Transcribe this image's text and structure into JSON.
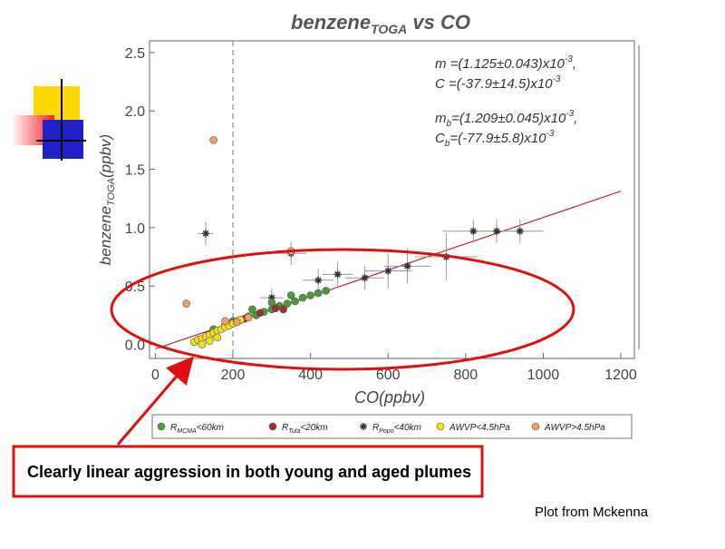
{
  "chart_data": {
    "type": "scatter",
    "title": [
      "benzene",
      "TOGA",
      " vs CO"
    ],
    "x_label": "CO(ppbv)",
    "y_label": [
      "benzene",
      "TOGA",
      "(ppbv)"
    ],
    "xlim": [
      -15,
      1235
    ],
    "ylim": [
      -0.12,
      2.6
    ],
    "xticks": [
      0,
      200,
      400,
      600,
      800,
      1000,
      1200
    ],
    "yticks": [
      {
        "value": 0,
        "label": "0.0"
      },
      0.5,
      {
        "value": 1,
        "label": "1.0"
      },
      1.5,
      {
        "value": 2,
        "label": "2.0"
      },
      2.5
    ],
    "vline": 200,
    "fit": {
      "color": "#b03030",
      "x": [
        0,
        1200
      ],
      "y": [
        -0.038,
        1.312
      ]
    },
    "annotations": [
      [
        "m =(1.125±0.043)x10",
        "-3",
        ","
      ],
      [
        "C =(-37.9±14.5)x10",
        "-3"
      ],
      [
        "m",
        "b",
        "=(1.209±0.045)x10",
        "-3",
        ","
      ],
      [
        "C",
        "b",
        "=(-77.9±5.8)x10",
        "-3"
      ]
    ],
    "series": [
      {
        "name": [
          "R",
          "Popo",
          "<40km"
        ],
        "color": "#333333",
        "marker": "star",
        "x": [
          130,
          350,
          540,
          600,
          650,
          750,
          820,
          880,
          940,
          300,
          420,
          470
        ],
        "values": [
          0.95,
          0.78,
          0.57,
          0.63,
          0.67,
          0.75,
          0.97,
          0.97,
          0.97,
          0.4,
          0.55,
          0.6
        ],
        "xerr": [
          20,
          40,
          50,
          60,
          60,
          80,
          80,
          70,
          60,
          30,
          40,
          40
        ],
        "yerr": [
          0.1,
          0.1,
          0.1,
          0.15,
          0.15,
          0.2,
          0.1,
          0.1,
          0.1,
          0.08,
          0.1,
          0.1
        ]
      },
      {
        "name": [
          "R",
          "MCMA",
          "<60km"
        ],
        "color": "#4a9a3a",
        "marker": "circle",
        "x": [
          150,
          180,
          200,
          220,
          240,
          260,
          280,
          300,
          320,
          340,
          360,
          380,
          400,
          420,
          440,
          250,
          300,
          350
        ],
        "values": [
          0.13,
          0.16,
          0.2,
          0.21,
          0.24,
          0.25,
          0.28,
          0.3,
          0.33,
          0.35,
          0.37,
          0.4,
          0.42,
          0.44,
          0.46,
          0.3,
          0.36,
          0.42
        ]
      },
      {
        "name": [
          "R",
          "Tula",
          "<20km"
        ],
        "color": "#a03030",
        "marker": "circle",
        "x": [
          230,
          270,
          310,
          330
        ],
        "values": [
          0.22,
          0.27,
          0.31,
          0.3
        ]
      },
      {
        "name": [
          "AWVP<4.5hPa"
        ],
        "color": "#f0e020",
        "marker": "circle",
        "x": [
          100,
          110,
          120,
          130,
          140,
          150,
          160,
          170,
          180,
          190,
          200,
          210,
          220,
          120,
          140,
          160
        ],
        "values": [
          0.02,
          0.04,
          0.05,
          0.07,
          0.08,
          0.1,
          0.12,
          0.13,
          0.15,
          0.16,
          0.18,
          0.2,
          0.21,
          0.0,
          0.03,
          0.06
        ]
      },
      {
        "name": [
          "AWVP>4.5hPa"
        ],
        "color": "#f0a060",
        "marker": "circle",
        "x": [
          80,
          150,
          180,
          210,
          240,
          350
        ],
        "values": [
          0.35,
          1.75,
          0.2,
          0.19,
          0.23,
          0.8
        ]
      }
    ]
  },
  "slide": {
    "caption": "Clearly linear aggression in both young and aged plumes",
    "credit": "Plot from Mckenna"
  }
}
